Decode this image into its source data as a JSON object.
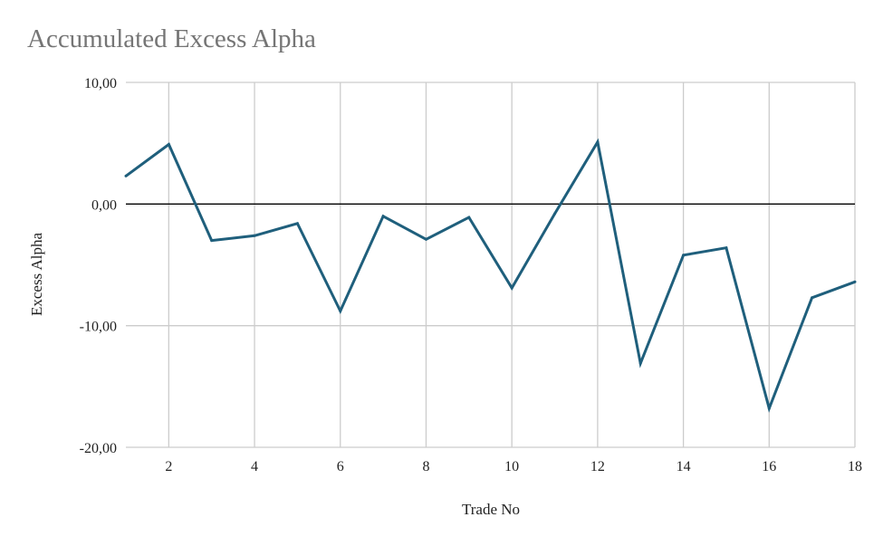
{
  "chart_data": {
    "type": "line",
    "title": "Accumulated Excess Alpha",
    "xlabel": "Trade No",
    "ylabel": "Excess Alpha",
    "x": [
      1,
      2,
      3,
      4,
      5,
      6,
      7,
      8,
      9,
      10,
      11,
      12,
      13,
      14,
      15,
      16,
      17,
      18
    ],
    "series": [
      {
        "values": [
          2.3,
          4.9,
          -3.0,
          -2.6,
          -1.6,
          -8.8,
          -1.0,
          -2.9,
          -1.1,
          -6.9,
          -0.8,
          5.1,
          -13.1,
          -4.2,
          -3.6,
          -16.8,
          -7.7,
          -6.4
        ]
      }
    ],
    "xlim": [
      1,
      18
    ],
    "ylim": [
      -20,
      10
    ],
    "xticks": [
      "2",
      "4",
      "6",
      "8",
      "10",
      "12",
      "14",
      "16",
      "18"
    ],
    "xtick_values": [
      2,
      4,
      6,
      8,
      10,
      12,
      14,
      16,
      18
    ],
    "yticks": [
      "10,00",
      "0,00",
      "-10,00",
      "-20,00"
    ],
    "ytick_values": [
      10,
      0,
      -10,
      -20
    ],
    "grid": true,
    "legend": "none",
    "colors": {
      "line": "#1f5f7c",
      "grid": "#cccccc",
      "zero_line": "#000000"
    }
  }
}
